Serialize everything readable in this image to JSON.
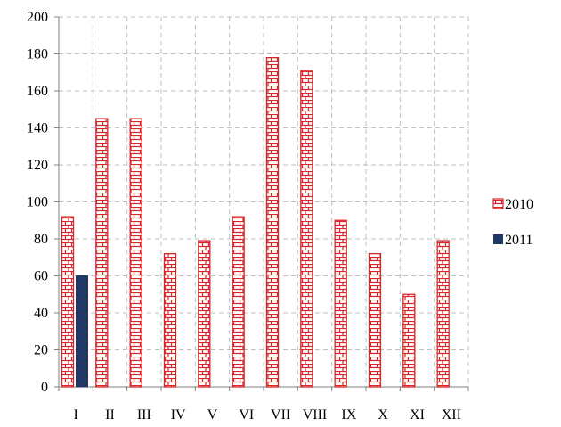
{
  "chart_data": {
    "type": "bar",
    "categories": [
      "I",
      "II",
      "III",
      "IV",
      "V",
      "VI",
      "VII",
      "VIII",
      "IX",
      "X",
      "XI",
      "XII"
    ],
    "series": [
      {
        "name": "2010",
        "values": [
          92,
          145,
          145,
          72,
          79,
          92,
          178,
          171,
          90,
          72,
          50,
          79
        ],
        "color": "#d9262a",
        "pattern": "brick"
      },
      {
        "name": "2011",
        "values": [
          60,
          null,
          null,
          null,
          null,
          null,
          null,
          null,
          null,
          null,
          null,
          null
        ],
        "color": "#1f3864"
      }
    ],
    "yticks": [
      "0",
      "20",
      "40",
      "60",
      "80",
      "100",
      "120",
      "140",
      "160",
      "180",
      "200"
    ],
    "ylim": [
      0,
      200
    ],
    "grid": true,
    "legend_position": "right"
  }
}
